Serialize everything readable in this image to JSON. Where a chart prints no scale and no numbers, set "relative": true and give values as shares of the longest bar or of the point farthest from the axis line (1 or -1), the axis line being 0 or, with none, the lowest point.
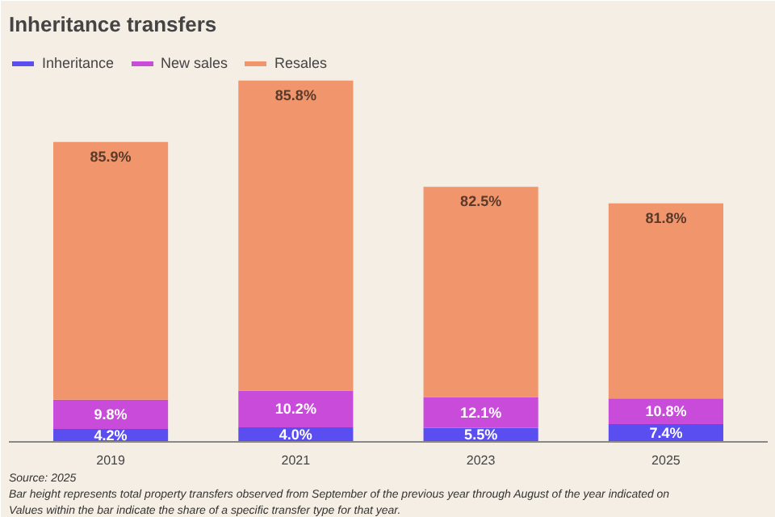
{
  "chart_data": {
    "type": "bar",
    "stacked": true,
    "relative": true,
    "title": "Inheritance transfers",
    "legend": "top left",
    "categories": [
      "2019",
      "2021",
      "2023",
      "2025"
    ],
    "series": [
      {
        "name": "Inheritance",
        "color": "#5b4ef0",
        "values": [
          0.036,
          0.04,
          0.039,
          0.049
        ]
      },
      {
        "name": "New sales",
        "color": "#c94bd9",
        "values": [
          0.081,
          0.102,
          0.085,
          0.071
        ]
      },
      {
        "name": "Resales",
        "color": "#f0956c",
        "values": [
          0.713,
          0.858,
          0.582,
          0.54
        ]
      }
    ],
    "annotations": [
      {
        "text": "4.2%",
        "x": "2019",
        "y": 0.036
      },
      {
        "text": "9.8%",
        "x": "2019",
        "y": 0.117
      },
      {
        "text": "85.9%",
        "x": "2019",
        "y": 0.83
      },
      {
        "text": "4.0%",
        "x": "2021",
        "y": 0.04
      },
      {
        "text": "10.2%",
        "x": "2021",
        "y": 0.142
      },
      {
        "text": "85.8%",
        "x": "2021",
        "y": 1.0
      },
      {
        "text": "5.5%",
        "x": "2023",
        "y": 0.039
      },
      {
        "text": "12.1%",
        "x": "2023",
        "y": 0.124
      },
      {
        "text": "82.5%",
        "x": "2023",
        "y": 0.706
      },
      {
        "text": "7.4%",
        "x": "2025",
        "y": 0.049
      },
      {
        "text": "10.8%",
        "x": "2025",
        "y": 0.12
      },
      {
        "text": "81.8%",
        "x": "2025",
        "y": 0.66
      },
      "Source: 2025",
      "Bar height represents total property transfers observed from September of the previous year through August of the year indicated on",
      "Values within the bar indicate the share of a specific transfer type for that year."
    ]
  }
}
